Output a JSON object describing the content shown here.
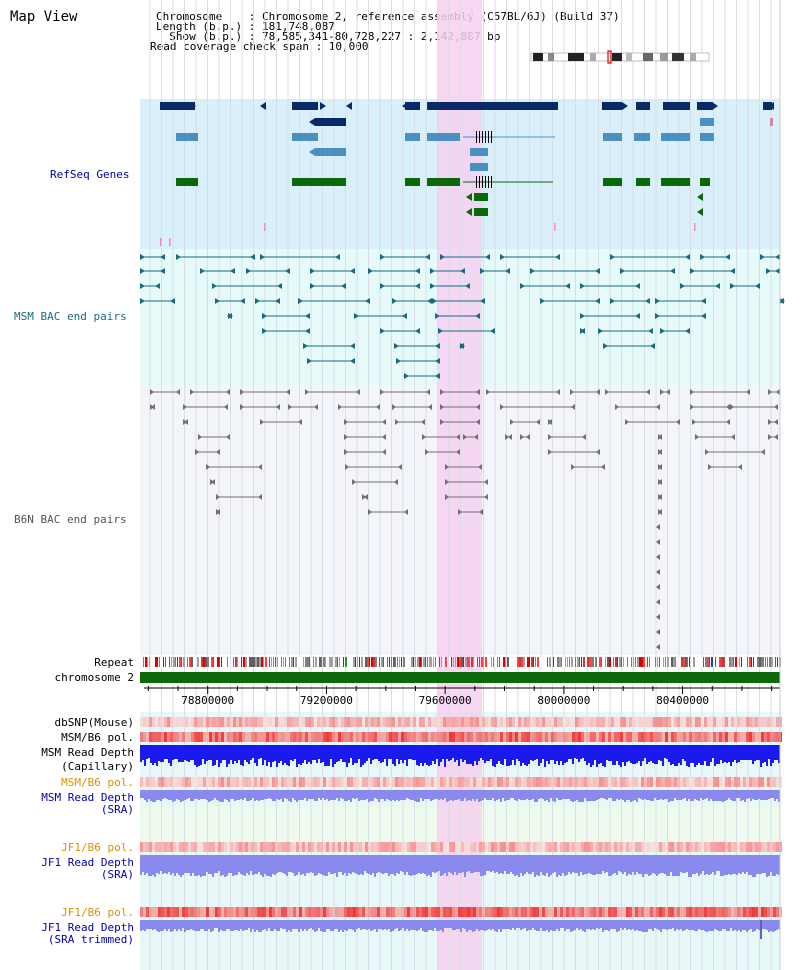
{
  "page": {
    "title": "Map View",
    "info": {
      "chromosome_line": "Chromosome    : Chromosome 2, reference assembly (C57BL/6J) (Build 37)",
      "length_line": "Length (b.p.) : 181,748,087",
      "show_line": "  Show (b.p.) : 78,585,341-80,728,227 : 2,142,887 bp",
      "coverage_line": "Read coverage check span : 10,000"
    }
  },
  "tracks": {
    "refseq": {
      "label": "RefSeq Genes"
    },
    "msm_bac": {
      "label": "MSM BAC end pairs"
    },
    "b6n_bac": {
      "label": "B6N BAC end pairs"
    },
    "repeat": {
      "label": "Repeat"
    },
    "chromosome": {
      "label": "chromosome 2"
    },
    "dbsnp": {
      "label": "dbSNP(Mouse)"
    },
    "msm_b6_pol_1": {
      "label": "MSM/B6 pol."
    },
    "msm_depth_cap": {
      "label_line1": "MSM Read Depth",
      "label_line2": "(Capillary)"
    },
    "msm_b6_pol_2": {
      "label": "MSM/B6 pol."
    },
    "msm_depth_sra": {
      "label_line1": "MSM Read Depth",
      "label_line2": "(SRA)"
    },
    "jf1_b6_pol_1": {
      "label": "JF1/B6 pol."
    },
    "jf1_depth_sra": {
      "label_line1": "JF1 Read Depth",
      "label_line2": "(SRA)"
    },
    "jf1_b6_pol_2": {
      "label": "JF1/B6 pol."
    },
    "jf1_depth_trim": {
      "label_line1": "JF1 Read Depth",
      "label_line2": "(SRA trimmed)"
    }
  },
  "axis": {
    "tick_labels": [
      "78800000",
      "79200000",
      "79600000",
      "80000000",
      "80400000"
    ],
    "tick_values": [
      78800000,
      79200000,
      79600000,
      80000000,
      80400000
    ],
    "range": [
      78585341,
      80728227
    ],
    "highlight_range": [
      79575000,
      79720000
    ]
  },
  "colors": {
    "refseq_bg": "#d9f0fb",
    "msm_bg": "#e6fafa",
    "b6n_bg": "#f4f5fb",
    "highlight": "#f6d0f0",
    "gene_dark": "#0a2a66",
    "gene_mid": "#4a90c0",
    "gene_green": "#0a6a0a",
    "msm_pair": "#1a6a80",
    "b6n_pair": "#707070",
    "chromosome_bar": "#0a6a0a",
    "depth_blue": "#1a1aee",
    "depth_light": "#8a8aee",
    "label_dark": "#000000",
    "label_blue": "#0000aa",
    "label_orange": "#e09000"
  }
}
